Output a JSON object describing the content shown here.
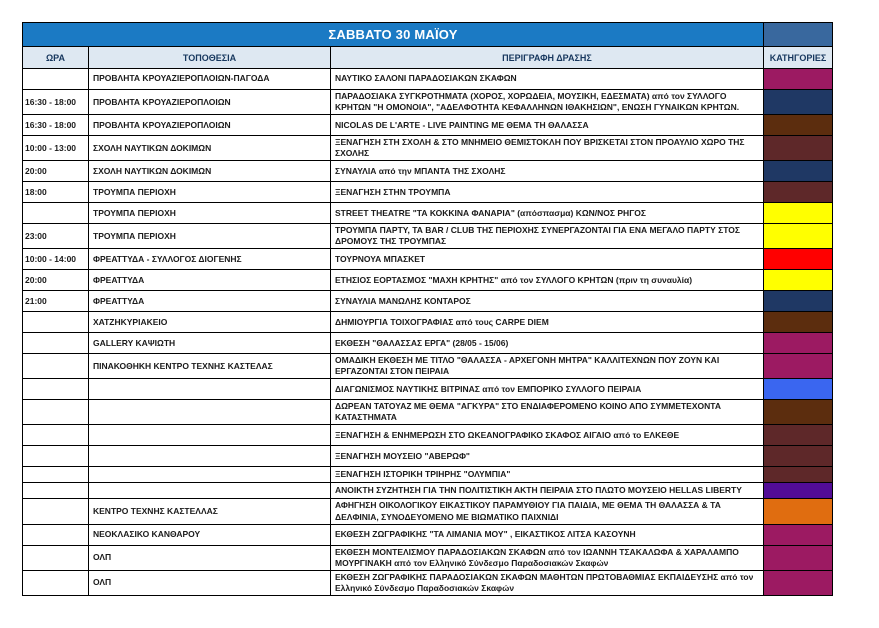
{
  "title": "ΣΑΒΒΑΤΟ 30 ΜΑΪΟΥ",
  "columns": {
    "time": "ΩΡΑ",
    "location": "ΤΟΠΟΘΕΣΙΑ",
    "description": "ΠΕΡΙΓΡΑΦΗ ΔΡΑΣΗΣ",
    "category": "ΚΑΤΗΓΟΡΙΕΣ"
  },
  "colors": {
    "title_bar": "#1B7AC4",
    "corner_cell": "#39689E",
    "header_bg": "#DEE8F2",
    "header_text": "#17375E",
    "magenta": "#9C1A62",
    "navy": "#1F3864",
    "brown": "#5C2D0E",
    "maroon": "#5E2829",
    "yellow": "#FFFF00",
    "red": "#FF0000",
    "royal_blue": "#3A66F0",
    "purple": "#520C96",
    "orange": "#E06D10"
  },
  "rows": [
    {
      "time": "",
      "location": "ΠΡΟΒΛΗΤΑ ΚΡΟΥΑΖΙΕΡΟΠΛΟΙΩΝ-ΠΑΓΟΔΑ",
      "description": "ΝΑΥΤΙΚΟ ΣΑΛΟΝΙ ΠΑΡΑΔΟΣΙΑΚΩΝ ΣΚΑΦΩΝ",
      "category_color": "#9C1A62",
      "short": false
    },
    {
      "time": "16:30 - 18:00",
      "location": "ΠΡΟΒΛΗΤΑ ΚΡΟΥΑΖΙΕΡΟΠΛΟΙΩΝ",
      "description": "ΠΑΡΑΔΟΣΙΑΚΑ ΣΥΓΚΡΟΤΗΜΑΤΑ (ΧΟΡΟΣ, ΧΟΡΩΔΕΙΑ, ΜΟΥΣΙΚΗ, ΕΔΕΣΜΑΤΑ) από τον ΣΥΛΛΟΓΟ ΚΡΗΤΩΝ \"Η ΟΜΟΝΟΙΑ\", \"ΑΔΕΛΦΟΤΗΤΑ ΚΕΦΑΛΛΗΝΩΝ ΙΘΑΚΗΣΙΩΝ\", ΕΝΩΣΗ ΓΥΝΑΙΚΩΝ ΚΡΗΤΩΝ.",
      "category_color": "#1F3864",
      "short": false
    },
    {
      "time": "16:30 - 18:00",
      "location": "ΠΡΟΒΛΗΤΑ ΚΡΟΥΑΖΙΕΡΟΠΛΟΙΩΝ",
      "description": "NICOLAS DE L'ARTE - LIVE PAINTING ΜΕ ΘΕΜΑ ΤΗ ΘΑΛΑΣΣΑ",
      "category_color": "#5C2D0E",
      "short": false
    },
    {
      "time": "10:00 - 13:00",
      "location": "ΣΧΟΛΗ ΝΑΥΤΙΚΩΝ ΔΟΚΙΜΩΝ",
      "description": "ΞΕΝΑΓΗΣΗ ΣΤΗ ΣΧΟΛΗ & ΣΤΟ ΜΝΗΜΕΙΟ ΘΕΜΙΣΤΟΚΛΗ ΠΟΥ ΒΡΙΣΚΕΤΑΙ ΣΤΟΝ ΠΡΟΑΥΛΙΟ ΧΩΡΟ ΤΗΣ ΣΧΟΛΗΣ",
      "category_color": "#5E2829",
      "short": false
    },
    {
      "time": "20:00",
      "location": "ΣΧΟΛΗ ΝΑΥΤΙΚΩΝ ΔΟΚΙΜΩΝ",
      "description": "ΣΥΝΑΥΛΙΑ από την ΜΠΑΝΤΑ ΤΗΣ ΣΧΟΛΗΣ",
      "category_color": "#1F3864",
      "short": false
    },
    {
      "time": "18:00",
      "location": "ΤΡΟΥΜΠΑ ΠΕΡΙΟΧΗ",
      "description": "ΞΕΝΑΓΗΣΗ ΣΤΗΝ ΤΡΟΥΜΠΑ",
      "category_color": "#5E2829",
      "short": false
    },
    {
      "time": "",
      "location": "ΤΡΟΥΜΠΑ ΠΕΡΙΟΧΗ",
      "description": "STREET THEATRE \"ΤΑ ΚΟΚΚΙΝΑ ΦΑΝΑΡΙΑ\" (απόσπασμα) ΚΩΝ/ΝΟΣ ΡΗΓΟΣ",
      "category_color": "#FFFF00",
      "short": false
    },
    {
      "time": "23:00",
      "location": "ΤΡΟΥΜΠΑ ΠΕΡΙΟΧΗ",
      "description": "ΤΡΟΥΜΠΑ ΠΑΡΤΥ, ΤΑ BAR / CLUB ΤΗΣ ΠΕΡΙΟΧΗΣ ΣΥΝΕΡΓΑΖΟΝΤΑΙ ΓΙΑ ΕΝΑ ΜΕΓΑΛΟ ΠΑΡΤΥ ΣΤΟΣ ΔΡΟΜΟΥΣ ΤΗΣ ΤΡΟΥΜΠΑΣ",
      "category_color": "#FFFF00",
      "short": false
    },
    {
      "time": "10:00 - 14:00",
      "location": "ΦΡΕΑΤΤΥΔΑ - ΣΥΛΛΟΓΟΣ ΔΙΟΓΕΝΗΣ",
      "description": "ΤΟΥΡΝΟΥΑ ΜΠΑΣΚΕΤ",
      "category_color": "#FF0000",
      "short": false
    },
    {
      "time": "20:00",
      "location": "ΦΡΕΑΤΤΥΔΑ",
      "description": "ΕΤΗΣΙΟΣ ΕΟΡΤΑΣΜΟΣ \"ΜΑΧΗ ΚΡΗΤΗΣ\" από τον ΣΥΛΛΟΓΟ ΚΡΗΤΩΝ (πριν τη συναυλία)",
      "category_color": "#FFFF00",
      "short": false
    },
    {
      "time": "21:00",
      "location": "ΦΡΕΑΤΤΥΔΑ",
      "description": "ΣΥΝΑΥΛΙΑ ΜΑΝΩΛΗΣ ΚΟΝΤΑΡΟΣ",
      "category_color": "#1F3864",
      "short": false
    },
    {
      "time": "",
      "location": "ΧΑΤΖΗΚΥΡΙΑΚΕΙΟ",
      "description": "ΔΗΜΙΟΥΡΓΙΑ ΤΟΙΧΟΓΡΑΦΙΑΣ από τους CARPE DIEM",
      "category_color": "#5C2D0E",
      "short": false
    },
    {
      "time": "",
      "location": "GALLERY ΚΑΨΙΩΤΗ",
      "description": "ΕΚΘΕΣΗ \"ΘΑΛΑΣΣΑΣ ΕΡΓΑ\" (28/05 - 15/06)",
      "category_color": "#9C1A62",
      "short": false
    },
    {
      "time": "",
      "location": "ΠΙΝΑΚΟΘΗΚΗ ΚΕΝΤΡΟ ΤΕΧΝΗΣ ΚΑΣΤΕΛΑΣ",
      "description": "ΟΜΑΔΙΚΗ ΕΚΘΕΣΗ ΜΕ ΤΙΤΛΟ \"ΘΑΛΑΣΣΑ - ΑΡΧΕΓΟΝΗ ΜΗΤΡΑ\" ΚΑΛΛΙΤΕΧΝΩΝ ΠΟΥ ΖΟΥΝ ΚΑΙ ΕΡΓΑΖΟΝΤΑΙ ΣΤΟΝ ΠΕΙΡΑΙΑ",
      "category_color": "#9C1A62",
      "short": false
    },
    {
      "time": "",
      "location": "",
      "description": "ΔΙΑΓΩΝΙΣΜΟΣ ΝΑΥΤΙΚΗΣ ΒΙΤΡΙΝΑΣ από τον ΕΜΠΟΡΙΚΟ ΣΥΛΛΟΓΟ ΠΕΙΡΑΙΑ",
      "category_color": "#3A66F0",
      "short": false
    },
    {
      "time": "",
      "location": "",
      "description": "ΔΩΡΕΑΝ ΤΑΤΟΥΑΖ ΜΕ ΘΕΜΑ \"ΑΓΚΥΡΑ\" ΣΤΟ ΕΝΔΙΑΦΕΡΟΜΕΝΟ ΚΟΙΝΟ ΑΠΟ ΣΥΜΜΕΤΕΧΟΝΤΑ ΚΑΤΑΣΤΗΜΑΤΑ",
      "category_color": "#5C2D0E",
      "short": false
    },
    {
      "time": "",
      "location": "",
      "description": "ΞΕΝΑΓΗΣΗ & ΕΝΗΜΕΡΩΣΗ ΣΤΟ ΩΚΕΑΝΟΓΡΑΦΙΚΟ ΣΚΑΦΟΣ ΑΙΓΑΙΟ από το ΕΛΚΕΘΕ",
      "category_color": "#5E2829",
      "short": false
    },
    {
      "time": "",
      "location": "",
      "description": "ΞΕΝΑΓΗΣΗ ΜΟΥΣΕΙΟ \"ΑΒΕΡΩΦ\"",
      "category_color": "#5E2829",
      "short": false
    },
    {
      "time": "",
      "location": "",
      "description": "ΞΕΝΑΓΗΣΗ ΙΣΤΟΡΙΚΗ ΤΡΙΗΡΗΣ \"ΟΛΥΜΠΙΑ\"",
      "category_color": "#5E2829",
      "short": true
    },
    {
      "time": "",
      "location": "",
      "description": "ΑΝΟΙΚΤΗ ΣΥΖΗΤΗΣΗ ΓΙΑ ΤΗΝ ΠΟΛΙΤΙΣΤΙΚΗ ΑΚΤΗ ΠΕΙΡΑΙΑ ΣΤΟ ΠΛΩΤΟ ΜΟΥΣΕΙΟ  HELLAS LIBERTY",
      "category_color": "#520C96",
      "short": true
    },
    {
      "time": "",
      "location": "ΚΕΝΤΡΟ ΤΕΧΝΗΣ ΚΑΣΤΕΛΛΑΣ",
      "description": "ΑΦΗΓΗΣΗ ΟΙΚΟΛΟΓΙΚΟΥ ΕΙΚΑΣΤΙΚΟΥ ΠΑΡΑΜΥΘΙΟΥ ΓΙΑ ΠΑΙΔΙΑ, ΜΕ ΘΕΜΑ ΤΗ ΘΑΛΑΣΣΑ & ΤΑ ΔΕΛΦΙΝΙΑ, ΣΥΝΟΔΕΥΟΜΕΝΟ ΜΕ ΒΙΩΜΑΤΙΚΟ ΠΑΙΧΝΙΔΙ",
      "category_color": "#E06D10",
      "short": false
    },
    {
      "time": "",
      "location": "ΝΕΟΚΛΑΣΙΚΟ ΚΑΝΘΑΡΟΥ",
      "description": "ΕΚΘΕΣΗ ΖΩΓΡΑΦΙΚΗΣ \"ΤΑ ΛΙΜΑΝΙΑ ΜΟΥ\" , ΕΙΚΑΣΤΙΚΟΣ ΛΙΤΣΑ ΚΑΣΟΥΝΗ",
      "category_color": "#9C1A62",
      "short": false
    },
    {
      "time": "",
      "location": "ΟΛΠ",
      "description": "ΕΚΘΕΣΗ ΜΟΝΤΕΛΙΣΜΟΥ ΠΑΡΑΔΟΣΙΑΚΩΝ ΣΚΑΦΩΝ από τον ΙΩΑΝΝΗ ΤΣΑΚΑΛΩΦΑ & ΧΑΡΑΛΑΜΠΟ ΜΟΥΡΓΙΝΑΚΗ  από τον Ελληνικό Σύνδεσμο Παραδοσιακών Σκαφών",
      "category_color": "#9C1A62",
      "short": false
    },
    {
      "time": "",
      "location": "ΟΛΠ",
      "description": "ΕΚΘΕΣΗ ΖΩΓΡΑΦΙΚΗΣ ΠΑΡΑΔΟΣΙΑΚΩΝ ΣΚΑΦΩΝ ΜΑΘΗΤΩΝ ΠΡΩΤΟΒΑΘΜΙΑΣ ΕΚΠΑΙΔΕΥΣΗΣ από τον Ελληνικό Σύνδεσμο Παραδοσιακών Σκαφών",
      "category_color": "#9C1A62",
      "short": false
    }
  ]
}
